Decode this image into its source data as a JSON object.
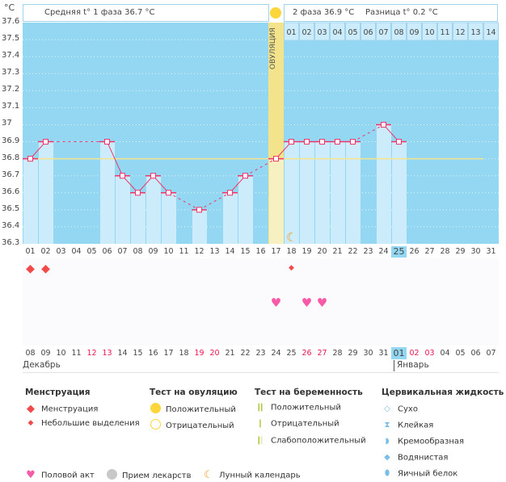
{
  "header": {
    "unit": "°C",
    "phase1": "Средняя t° 1 фаза 36.7 °C",
    "phase2": "2 фаза 36.9 °C",
    "diff": "Разница t° 0.2 °C",
    "ovulation_label": "ОВУЛЯЦИЯ"
  },
  "colors": {
    "plot_bg": "#93d7f2",
    "bar": "#ccecfb",
    "line": "#f0346a",
    "coverline": "#f7e58c",
    "ovulation": "#f7f0c0",
    "weekend": "#e8174f"
  },
  "chart_data": {
    "type": "bar+line",
    "ylim": [
      36.3,
      37.6
    ],
    "yticks": [
      "37.6",
      "37.5",
      "37.4",
      "37.3",
      "37.2",
      "37.1",
      "37",
      "36.9",
      "36.8",
      "36.7",
      "36.6",
      "36.5",
      "36.4",
      "36.3"
    ],
    "cycle_days": [
      "01",
      "02",
      "03",
      "04",
      "05",
      "06",
      "07",
      "08",
      "09",
      "10",
      "11",
      "12",
      "13",
      "14",
      "15",
      "16",
      "17",
      "18",
      "19",
      "20",
      "21",
      "22",
      "23",
      "24",
      "25",
      "26",
      "27",
      "28",
      "29",
      "30",
      "31"
    ],
    "temperature": [
      36.8,
      36.9,
      null,
      null,
      null,
      36.9,
      36.7,
      36.6,
      36.7,
      36.6,
      null,
      36.5,
      null,
      36.6,
      36.7,
      null,
      36.8,
      36.9,
      36.9,
      36.9,
      36.9,
      36.9,
      null,
      37.0,
      36.9,
      null,
      null,
      null,
      null,
      null,
      null
    ],
    "coverline": 36.8,
    "ovulation_day": 17,
    "current_day": 25,
    "luteal_days": [
      "01",
      "02",
      "03",
      "04",
      "05",
      "06",
      "07",
      "08",
      "09",
      "10",
      "11",
      "12",
      "13",
      "14"
    ],
    "moon_day": 18,
    "menstruation_days": [
      1,
      2
    ],
    "spotting_days": [
      18
    ],
    "intercourse_days": [
      17,
      19,
      20
    ],
    "dates": [
      "08",
      "09",
      "10",
      "11",
      "12",
      "13",
      "14",
      "15",
      "16",
      "17",
      "18",
      "19",
      "20",
      "21",
      "22",
      "23",
      "24",
      "25",
      "26",
      "27",
      "28",
      "29",
      "30",
      "31",
      "01",
      "02",
      "03",
      "04",
      "05",
      "06",
      "07"
    ],
    "weekend_dates": [
      4,
      5,
      11,
      12,
      18,
      19,
      25,
      26
    ],
    "months": [
      "Декабрь",
      "Январь"
    ]
  },
  "legend": {
    "menstruation": {
      "title": "Менструация",
      "items": [
        "Менструация",
        "Небольшие выделения"
      ]
    },
    "ovulation_test": {
      "title": "Тест на овуляцию",
      "items": [
        "Положительный",
        "Отрицательный"
      ]
    },
    "pregnancy_test": {
      "title": "Тест на беременность",
      "items": [
        "Положительный",
        "Отрицательный",
        "Слабоположительный"
      ]
    },
    "cervical": {
      "title": "Цервикальная жидкость",
      "items": [
        "Сухо",
        "Клейкая",
        "Кремообразная",
        "Водянистая",
        "Яичный белок"
      ]
    },
    "other": [
      "Половой акт",
      "Прием лекарств",
      "Лунный календарь"
    ]
  }
}
